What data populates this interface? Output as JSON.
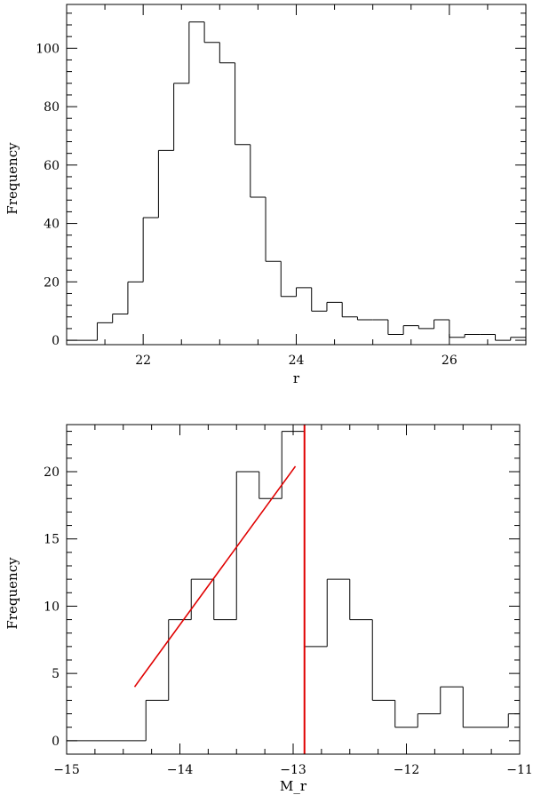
{
  "chart_data": [
    {
      "type": "histogram",
      "xlabel": "r",
      "ylabel": "Frequency",
      "xlim": [
        21,
        27
      ],
      "ylim": [
        -1.5,
        115
      ],
      "xticks": [
        22,
        24,
        26
      ],
      "xtick_labels": [
        "22",
        "24",
        "26"
      ],
      "yticks": [
        0,
        20,
        40,
        60,
        80,
        100
      ],
      "ytick_labels": [
        "0",
        "20",
        "40",
        "60",
        "80",
        "100"
      ],
      "bin_width": 0.2,
      "bins": [
        {
          "x0": 21.0,
          "x1": 21.4,
          "y": 0
        },
        {
          "x0": 21.4,
          "x1": 21.6,
          "y": 6
        },
        {
          "x0": 21.6,
          "x1": 21.8,
          "y": 9
        },
        {
          "x0": 21.8,
          "x1": 22.0,
          "y": 20
        },
        {
          "x0": 22.0,
          "x1": 22.2,
          "y": 42
        },
        {
          "x0": 22.2,
          "x1": 22.4,
          "y": 65
        },
        {
          "x0": 22.4,
          "x1": 22.6,
          "y": 88
        },
        {
          "x0": 22.6,
          "x1": 22.8,
          "y": 109
        },
        {
          "x0": 22.8,
          "x1": 23.0,
          "y": 102
        },
        {
          "x0": 23.0,
          "x1": 23.2,
          "y": 95
        },
        {
          "x0": 23.2,
          "x1": 23.4,
          "y": 67
        },
        {
          "x0": 23.4,
          "x1": 23.6,
          "y": 49
        },
        {
          "x0": 23.6,
          "x1": 23.8,
          "y": 27
        },
        {
          "x0": 23.8,
          "x1": 24.0,
          "y": 15
        },
        {
          "x0": 24.0,
          "x1": 24.2,
          "y": 18
        },
        {
          "x0": 24.2,
          "x1": 24.4,
          "y": 10
        },
        {
          "x0": 24.4,
          "x1": 24.6,
          "y": 13
        },
        {
          "x0": 24.6,
          "x1": 24.8,
          "y": 8
        },
        {
          "x0": 24.8,
          "x1": 25.0,
          "y": 7
        },
        {
          "x0": 25.0,
          "x1": 25.2,
          "y": 7
        },
        {
          "x0": 25.2,
          "x1": 25.4,
          "y": 2
        },
        {
          "x0": 25.4,
          "x1": 25.6,
          "y": 5
        },
        {
          "x0": 25.6,
          "x1": 25.8,
          "y": 4
        },
        {
          "x0": 25.8,
          "x1": 26.0,
          "y": 7
        },
        {
          "x0": 26.0,
          "x1": 26.2,
          "y": 1
        },
        {
          "x0": 26.2,
          "x1": 26.4,
          "y": 2
        },
        {
          "x0": 26.4,
          "x1": 26.6,
          "y": 2
        },
        {
          "x0": 26.6,
          "x1": 26.8,
          "y": 0
        },
        {
          "x0": 26.8,
          "x1": 27.0,
          "y": 1
        }
      ]
    },
    {
      "type": "histogram",
      "xlabel": "M_r",
      "ylabel": "Frequency",
      "xlim": [
        -15,
        -11
      ],
      "ylim": [
        -1,
        23.5
      ],
      "xticks": [
        -15,
        -14,
        -13,
        -12,
        -11
      ],
      "xtick_labels": [
        "−15",
        "−14",
        "−13",
        "−12",
        "−11"
      ],
      "yticks": [
        0,
        5,
        10,
        15,
        20
      ],
      "ytick_labels": [
        "0",
        "5",
        "10",
        "15",
        "20"
      ],
      "bin_width": 0.2,
      "bins": [
        {
          "x0": -15.0,
          "x1": -14.3,
          "y": 0
        },
        {
          "x0": -14.3,
          "x1": -14.1,
          "y": 3
        },
        {
          "x0": -14.1,
          "x1": -13.9,
          "y": 9
        },
        {
          "x0": -13.9,
          "x1": -13.7,
          "y": 12
        },
        {
          "x0": -13.7,
          "x1": -13.5,
          "y": 9
        },
        {
          "x0": -13.5,
          "x1": -13.3,
          "y": 20
        },
        {
          "x0": -13.3,
          "x1": -13.1,
          "y": 18
        },
        {
          "x0": -13.1,
          "x1": -12.9,
          "y": 23
        },
        {
          "x0": -12.9,
          "x1": -12.7,
          "y": 7
        },
        {
          "x0": -12.7,
          "x1": -12.5,
          "y": 12
        },
        {
          "x0": -12.5,
          "x1": -12.3,
          "y": 9
        },
        {
          "x0": -12.3,
          "x1": -12.1,
          "y": 3
        },
        {
          "x0": -12.1,
          "x1": -11.9,
          "y": 1
        },
        {
          "x0": -11.9,
          "x1": -11.7,
          "y": 2
        },
        {
          "x0": -11.7,
          "x1": -11.5,
          "y": 4
        },
        {
          "x0": -11.5,
          "x1": -11.1,
          "y": 1
        },
        {
          "x0": -11.1,
          "x1": -11.0,
          "y": 2
        }
      ],
      "fit_line": {
        "x": [
          -14.4,
          -12.98
        ],
        "y": [
          4,
          20.4
        ],
        "color": "#e00000"
      },
      "cutoff_line": {
        "x": -12.9,
        "color": "#e00000"
      }
    }
  ]
}
